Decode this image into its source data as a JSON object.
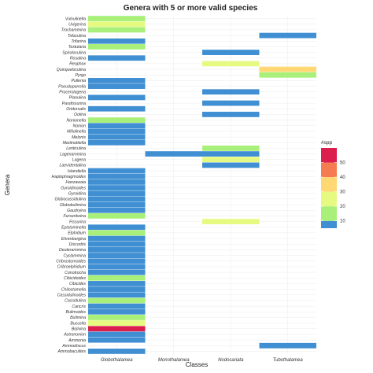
{
  "chart_data": {
    "type": "heatmap",
    "title": "Genera with 5 or more valid species",
    "xlabel": "Classes",
    "ylabel": "Genera",
    "x_categories": [
      "Globothalamea",
      "Monothalamea",
      "Nodosariata",
      "Tubothalamea"
    ],
    "y_categories": [
      "Vulvulinella",
      "Uvigerina",
      "Trochammina",
      "Triloculina",
      "Trifarina",
      "Textularia",
      "Spiroloculina",
      "Rosalina",
      "Reophax",
      "Quinqueloculina",
      "Pyrgo",
      "Pullenia",
      "Pseudoparrella",
      "Procerolagena",
      "Planulina",
      "Parafissurina",
      "Oridorsalis",
      "Oolina",
      "Nonionella",
      "Nonion",
      "Miliolinella",
      "Melonis",
      "Martinottiella",
      "Lenticulina",
      "Lagenammina",
      "Lagena",
      "Laevidentalina",
      "Islandiella",
      "Haplophragmoides",
      "Hanzawaia",
      "Gyroidinoides",
      "Gyroidina",
      "Globocassidulina",
      "Globobulimina",
      "Gaudryina",
      "Fursenkoina",
      "Fissurina",
      "Epistominella",
      "Elphidium",
      "Ehrenbergina",
      "Discorbis",
      "Deuterammina",
      "Cyclammina",
      "Cribrostomoides",
      "Cribroelphidium",
      "Conotrocha",
      "Cibicidoides",
      "Cibicides",
      "Chilostomella",
      "Cassidulinoides",
      "Cassidulina",
      "Cancris",
      "Bulimoides",
      "Bulimina",
      "Buccella",
      "Bolivina",
      "Astrononion",
      "Ammonia",
      "Ammodiscus",
      "Ammobaculites"
    ],
    "cells": [
      {
        "genus": "Vulvulinella",
        "class": "Globothalamea",
        "spp": 15
      },
      {
        "genus": "Uvigerina",
        "class": "Globothalamea",
        "spp": 22
      },
      {
        "genus": "Trochammina",
        "class": "Globothalamea",
        "spp": 18
      },
      {
        "genus": "Triloculina",
        "class": "Tubothalamea",
        "spp": 8
      },
      {
        "genus": "Trifarina",
        "class": "Globothalamea",
        "spp": 7
      },
      {
        "genus": "Textularia",
        "class": "Globothalamea",
        "spp": 16
      },
      {
        "genus": "Spiroloculina",
        "class": "Nodosariata",
        "spp": 7
      },
      {
        "genus": "Rosalina",
        "class": "Globothalamea",
        "spp": 8
      },
      {
        "genus": "Reophax",
        "class": "Nodosariata",
        "spp": 22
      },
      {
        "genus": "Quinqueloculina",
        "class": "Tubothalamea",
        "spp": 32
      },
      {
        "genus": "Pyrgo",
        "class": "Tubothalamea",
        "spp": 18
      },
      {
        "genus": "Pullenia",
        "class": "Globothalamea",
        "spp": 6
      },
      {
        "genus": "Pseudoparrella",
        "class": "Globothalamea",
        "spp": 5
      },
      {
        "genus": "Procerolagena",
        "class": "Nodosariata",
        "spp": 7
      },
      {
        "genus": "Planulina",
        "class": "Globothalamea",
        "spp": 6
      },
      {
        "genus": "Parafissurina",
        "class": "Nodosariata",
        "spp": 8
      },
      {
        "genus": "Oridorsalis",
        "class": "Globothalamea",
        "spp": 5
      },
      {
        "genus": "Oolina",
        "class": "Nodosariata",
        "spp": 9
      },
      {
        "genus": "Nonionella",
        "class": "Globothalamea",
        "spp": 15
      },
      {
        "genus": "Nonion",
        "class": "Globothalamea",
        "spp": 8
      },
      {
        "genus": "Miliolinella",
        "class": "Globothalamea",
        "spp": 6
      },
      {
        "genus": "Melonis",
        "class": "Globothalamea",
        "spp": 5
      },
      {
        "genus": "Martinottiella",
        "class": "Globothalamea",
        "spp": 5
      },
      {
        "genus": "Lenticulina",
        "class": "Nodosariata",
        "spp": 16
      },
      {
        "genus": "Lagenammina",
        "class": "Monothalamea",
        "spp": 7
      },
      {
        "genus": "Lagenammina",
        "class": "Nodosariata",
        "spp": 8
      },
      {
        "genus": "Lagena",
        "class": "Nodosariata",
        "spp": 22
      },
      {
        "genus": "Laevidentalina",
        "class": "Nodosariata",
        "spp": 9
      },
      {
        "genus": "Islandiella",
        "class": "Globothalamea",
        "spp": 6
      },
      {
        "genus": "Haplophragmoides",
        "class": "Globothalamea",
        "spp": 7
      },
      {
        "genus": "Hanzawaia",
        "class": "Globothalamea",
        "spp": 5
      },
      {
        "genus": "Gyroidinoides",
        "class": "Globothalamea",
        "spp": 6
      },
      {
        "genus": "Gyroidina",
        "class": "Globothalamea",
        "spp": 7
      },
      {
        "genus": "Globocassidulina",
        "class": "Globothalamea",
        "spp": 8
      },
      {
        "genus": "Globobulimina",
        "class": "Globothalamea",
        "spp": 6
      },
      {
        "genus": "Gaudryina",
        "class": "Globothalamea",
        "spp": 5
      },
      {
        "genus": "Fursenkoina",
        "class": "Globothalamea",
        "spp": 15
      },
      {
        "genus": "Fissurina",
        "class": "Nodosariata",
        "spp": 22
      },
      {
        "genus": "Epistominella",
        "class": "Globothalamea",
        "spp": 8
      },
      {
        "genus": "Elphidium",
        "class": "Globothalamea",
        "spp": 17
      },
      {
        "genus": "Ehrenbergina",
        "class": "Globothalamea",
        "spp": 7
      },
      {
        "genus": "Discorbis",
        "class": "Globothalamea",
        "spp": 6
      },
      {
        "genus": "Deuterammina",
        "class": "Globothalamea",
        "spp": 5
      },
      {
        "genus": "Cyclammina",
        "class": "Globothalamea",
        "spp": 6
      },
      {
        "genus": "Cribrostomoides",
        "class": "Globothalamea",
        "spp": 7
      },
      {
        "genus": "Cribroelphidium",
        "class": "Globothalamea",
        "spp": 8
      },
      {
        "genus": "Conotrocha",
        "class": "Globothalamea",
        "spp": 5
      },
      {
        "genus": "Cibicidoides",
        "class": "Globothalamea",
        "spp": 16
      },
      {
        "genus": "Cibicides",
        "class": "Globothalamea",
        "spp": 8
      },
      {
        "genus": "Chilostomella",
        "class": "Globothalamea",
        "spp": 6
      },
      {
        "genus": "Cassidulinoides",
        "class": "Globothalamea",
        "spp": 5
      },
      {
        "genus": "Cassidulina",
        "class": "Globothalamea",
        "spp": 15
      },
      {
        "genus": "Cancris",
        "class": "Globothalamea",
        "spp": 6
      },
      {
        "genus": "Bulimoides",
        "class": "Globothalamea",
        "spp": 7
      },
      {
        "genus": "Bulimina",
        "class": "Globothalamea",
        "spp": 15
      },
      {
        "genus": "Buccella",
        "class": "Globothalamea",
        "spp": 22
      },
      {
        "genus": "Bolivina",
        "class": "Globothalamea",
        "spp": 55
      },
      {
        "genus": "Astrononion",
        "class": "Globothalamea",
        "spp": 6
      },
      {
        "genus": "Ammonia",
        "class": "Globothalamea",
        "spp": 8
      },
      {
        "genus": "Ammodiscus",
        "class": "Tubothalamea",
        "spp": 7
      },
      {
        "genus": "Ammobaculites",
        "class": "Globothalamea",
        "spp": 6
      }
    ],
    "legend": {
      "title": "#spp",
      "position": "right",
      "ticks": [
        10,
        20,
        30,
        40,
        50
      ],
      "bins": [
        {
          "max": 10,
          "color": "#3f8fd2"
        },
        {
          "max": 20,
          "color": "#a8f07a"
        },
        {
          "max": 30,
          "color": "#e6fa82"
        },
        {
          "max": 40,
          "color": "#ffd874"
        },
        {
          "max": 50,
          "color": "#f57c50"
        },
        {
          "max": 60,
          "color": "#dc1e4e"
        }
      ]
    },
    "grid": true
  }
}
